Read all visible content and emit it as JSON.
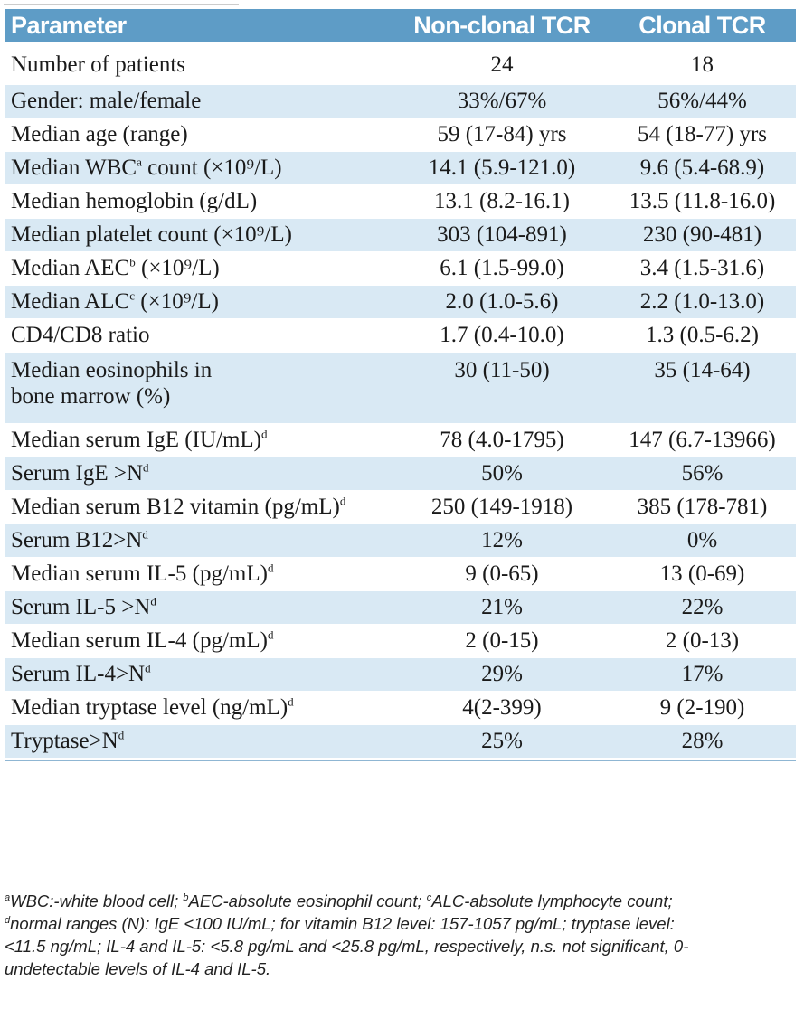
{
  "table": {
    "headers": {
      "parameter": "Parameter",
      "non_clonal": "Non-clonal TCR",
      "clonal": "Clonal TCR"
    },
    "rows": [
      {
        "label": "Number of patients",
        "sup": "",
        "label_after": "",
        "non_clonal": "24",
        "clonal": "18"
      },
      {
        "label": "Gender: male/female",
        "sup": "",
        "label_after": "",
        "non_clonal": "33%/67%",
        "clonal": "56%/44%"
      },
      {
        "label": "Median age (range)",
        "sup": "",
        "label_after": "",
        "non_clonal": "59 (17-84) yrs",
        "clonal": "54 (18-77) yrs"
      },
      {
        "label": "Median WBC",
        "sup": "a",
        "label_after": " count (×10⁹/L)",
        "non_clonal": "14.1 (5.9-121.0)",
        "clonal": "9.6 (5.4-68.9)"
      },
      {
        "label": "Median hemoglobin (g/dL)",
        "sup": "",
        "label_after": "",
        "non_clonal": "13.1 (8.2-16.1)",
        "clonal": "13.5 (11.8-16.0)"
      },
      {
        "label": "Median platelet count (×10⁹/L)",
        "sup": "",
        "label_after": "",
        "non_clonal": "303 (104-891)",
        "clonal": "230 (90-481)"
      },
      {
        "label": "Median AEC",
        "sup": "b",
        "label_after": " (×10⁹/L)",
        "non_clonal": "6.1 (1.5-99.0)",
        "clonal": "3.4 (1.5-31.6)"
      },
      {
        "label": "Median ALC",
        "sup": "c",
        "label_after": " (×10⁹/L)",
        "non_clonal": "2.0 (1.0-5.6)",
        "clonal": "2.2 (1.0-13.0)"
      },
      {
        "label": "CD4/CD8 ratio",
        "sup": "",
        "label_after": "",
        "non_clonal": "1.7 (0.4-10.0)",
        "clonal": "1.3 (0.5-6.2)"
      },
      {
        "label": "Median eosinophils in",
        "label_line2": "bone marrow (%)",
        "sup": "",
        "label_after": "",
        "non_clonal": "30 (11-50)",
        "clonal": "35 (14-64)"
      },
      {
        "label": "Median serum IgE (IU/mL)",
        "sup": "d",
        "label_after": "",
        "non_clonal": "78 (4.0-1795)",
        "clonal": "147 (6.7-13966)"
      },
      {
        "label": "Serum IgE >N",
        "sup": "d",
        "label_after": "",
        "non_clonal": "50%",
        "clonal": "56%"
      },
      {
        "label": "Median serum B12 vitamin (pg/mL)",
        "sup": "d",
        "label_after": "",
        "non_clonal": "250 (149-1918)",
        "clonal": "385 (178-781)"
      },
      {
        "label": "Serum B12>N",
        "sup": "d",
        "label_after": "",
        "non_clonal": "12%",
        "clonal": "0%"
      },
      {
        "label": "Median serum IL-5 (pg/mL)",
        "sup": "d",
        "label_after": "",
        "non_clonal": "9 (0-65)",
        "clonal": "13 (0-69)"
      },
      {
        "label": "Serum IL-5 >N",
        "sup": "d",
        "label_after": "",
        "non_clonal": "21%",
        "clonal": "22%"
      },
      {
        "label": "Median serum IL-4 (pg/mL)",
        "sup": "d",
        "label_after": "",
        "non_clonal": "2 (0-15)",
        "clonal": "2 (0-13)"
      },
      {
        "label": "Serum IL-4>N",
        "sup": "d",
        "label_after": "",
        "non_clonal": "29%",
        "clonal": "17%"
      },
      {
        "label": "Median tryptase level (ng/mL)",
        "sup": "d",
        "label_after": "",
        "non_clonal": "4(2-399)",
        "clonal": "9 (2-190)"
      },
      {
        "label": "Tryptase>N",
        "sup": "d",
        "label_after": "",
        "non_clonal": "25%",
        "clonal": "28%"
      }
    ]
  },
  "footnote": {
    "line1": [
      {
        "sup": "a",
        "text": "WBC:-white blood cell; "
      },
      {
        "sup": "b",
        "text": "AEC-absolute eosinophil count; "
      },
      {
        "sup": "c",
        "text": "ALC-absolute lymphocyte count;"
      }
    ],
    "line2": [
      {
        "sup": "d",
        "text": "normal ranges (N): IgE <100 IU/mL; for vitamin B12 level: 157-1057 pg/mL; tryptase level:"
      }
    ],
    "line3": "<11.5 ng/mL; IL-4 and IL-5: <5.8 pg/mL and <25.8 pg/mL, respectively, n.s. not significant, 0-",
    "line4": "undetectable levels of IL-4 and IL-5."
  }
}
